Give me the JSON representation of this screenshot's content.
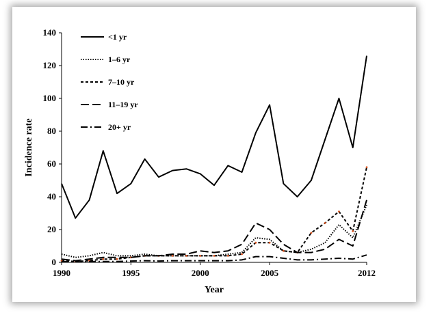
{
  "chart_data": {
    "type": "line",
    "xlabel": "Year",
    "ylabel": "Incidence rate",
    "x": [
      1990,
      1991,
      1992,
      1993,
      1994,
      1995,
      1996,
      1997,
      1998,
      1999,
      2000,
      2001,
      2002,
      2003,
      2004,
      2005,
      2006,
      2007,
      2008,
      2009,
      2010,
      2011,
      2012
    ],
    "xticks": [
      1990,
      1995,
      2000,
      2005,
      2012
    ],
    "yticks": [
      0,
      20,
      40,
      60,
      80,
      100,
      120,
      140
    ],
    "xlim": [
      1990,
      2012
    ],
    "ylim": [
      0,
      140
    ],
    "legend_position": "top-left",
    "grid": false,
    "series": [
      {
        "name": "<1 yr",
        "style": "solid",
        "color": "#000000",
        "values": [
          48,
          27,
          38,
          68,
          42,
          48,
          63,
          52,
          56,
          57,
          54,
          47,
          59,
          55,
          79,
          96,
          48,
          40,
          50,
          75,
          100,
          70,
          126
        ]
      },
      {
        "name": "1–6 yr",
        "style": "dotted",
        "color": "#000000",
        "values": [
          5,
          3,
          4,
          6,
          4,
          4,
          5,
          4,
          4,
          4,
          4,
          4,
          5,
          6,
          15,
          14,
          7,
          6,
          8,
          12,
          23,
          15,
          35
        ]
      },
      {
        "name": "7–10 yr",
        "style": "dashed-small",
        "color": "#000000",
        "marker_color": "#d9531e",
        "values": [
          1,
          0.5,
          1,
          2,
          2,
          3,
          4,
          4,
          4,
          4,
          4,
          4,
          4,
          5,
          12,
          12,
          7,
          6,
          18,
          24,
          31,
          19,
          58
        ]
      },
      {
        "name": "11–19 yr",
        "style": "dashed-long",
        "color": "#000000",
        "values": [
          2,
          1,
          2,
          3,
          3,
          3,
          4,
          4,
          5,
          5,
          7,
          6,
          7,
          11,
          24,
          20,
          11,
          6,
          6,
          8,
          14,
          10,
          38
        ]
      },
      {
        "name": "20+ yr",
        "style": "dashdot",
        "color": "#000000",
        "values": [
          0.5,
          0.3,
          0.5,
          0.5,
          0.5,
          0.8,
          1,
          0.8,
          1,
          1,
          1,
          1,
          1,
          1.5,
          3.5,
          3.5,
          2.5,
          1.5,
          1.5,
          2,
          2.5,
          2,
          4.5
        ]
      }
    ]
  }
}
